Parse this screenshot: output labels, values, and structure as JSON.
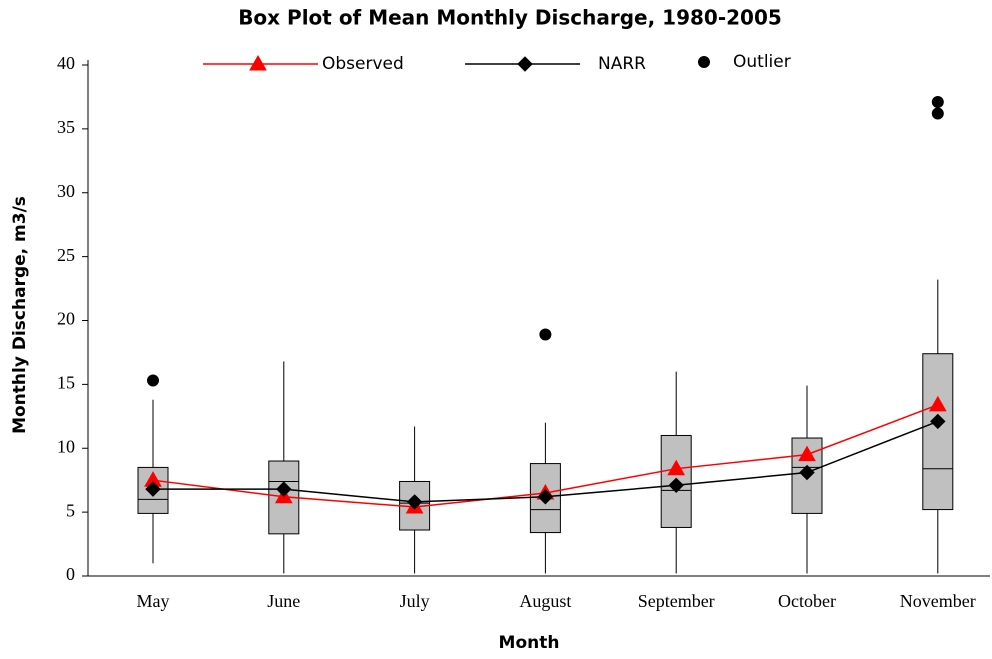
{
  "chart_data": {
    "type": "box",
    "title": "Box Plot of Mean Monthly Discharge, 1980-2005",
    "x_label": "Month",
    "y_label": "Monthly Discharge, m3/s",
    "categories": [
      "May",
      "June",
      "July",
      "August",
      "September",
      "October",
      "November"
    ],
    "ylim": [
      0,
      40
    ],
    "yticks": [
      0,
      5,
      10,
      15,
      20,
      25,
      30,
      35,
      40
    ],
    "box_color": "#c0c0c0",
    "boxes": {
      "low": [
        1.0,
        0.2,
        0.2,
        0.2,
        0.2,
        0.2,
        0.2
      ],
      "q1": [
        4.9,
        3.3,
        3.6,
        3.4,
        3.8,
        4.9,
        5.2
      ],
      "median": [
        6.0,
        7.4,
        5.7,
        5.2,
        6.7,
        8.5,
        8.4
      ],
      "q3": [
        8.5,
        9.0,
        7.4,
        8.8,
        11.0,
        10.8,
        17.4
      ],
      "high": [
        13.8,
        16.8,
        11.7,
        12.0,
        16.0,
        14.9,
        23.2
      ]
    },
    "outliers": {
      "name": "Outlier",
      "color": "#000000",
      "values": [
        [
          15.3
        ],
        [],
        [],
        [
          18.9
        ],
        [],
        [],
        [
          36.2,
          37.1
        ]
      ]
    },
    "series": [
      {
        "name": "Observed",
        "color": "#ff0000",
        "marker": "triangle",
        "values": [
          7.5,
          6.2,
          5.4,
          6.5,
          8.4,
          9.5,
          13.4
        ]
      },
      {
        "name": "NARR",
        "color": "#000000",
        "marker": "diamond",
        "values": [
          6.8,
          6.8,
          5.8,
          6.2,
          7.1,
          8.1,
          12.1
        ]
      }
    ]
  }
}
